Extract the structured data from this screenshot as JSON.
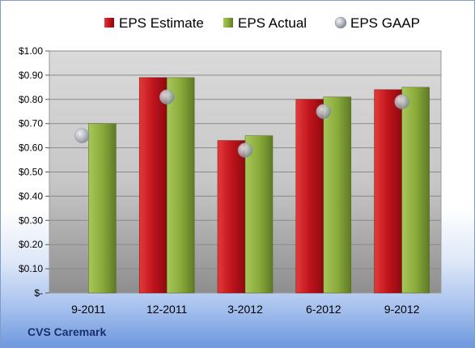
{
  "chart_data": {
    "type": "bar",
    "categories": [
      "9-2011",
      "12-2011",
      "3-2012",
      "6-2012",
      "9-2012"
    ],
    "series": [
      {
        "name": "EPS Estimate",
        "kind": "bar",
        "color": "#c0141c",
        "values": [
          null,
          0.89,
          0.63,
          0.8,
          0.84
        ]
      },
      {
        "name": "EPS Actual",
        "kind": "bar",
        "color": "#8aab3c",
        "values": [
          0.7,
          0.89,
          0.65,
          0.81,
          0.85
        ]
      },
      {
        "name": "EPS GAAP",
        "kind": "marker",
        "color": "#aeb4bd",
        "values": [
          0.65,
          0.81,
          0.59,
          0.75,
          0.79
        ]
      }
    ],
    "ylim": [
      0,
      1.0
    ],
    "yticks": [
      0,
      0.1,
      0.2,
      0.3,
      0.4,
      0.5,
      0.6,
      0.7,
      0.8,
      0.9,
      1.0
    ],
    "ytick_labels": [
      "$-",
      "$0.10",
      "$0.20",
      "$0.30",
      "$0.40",
      "$0.50",
      "$0.60",
      "$0.70",
      "$0.80",
      "$0.90",
      "$1.00"
    ],
    "grid": true,
    "legend_position": "top"
  },
  "footer": {
    "company": "CVS Caremark"
  }
}
